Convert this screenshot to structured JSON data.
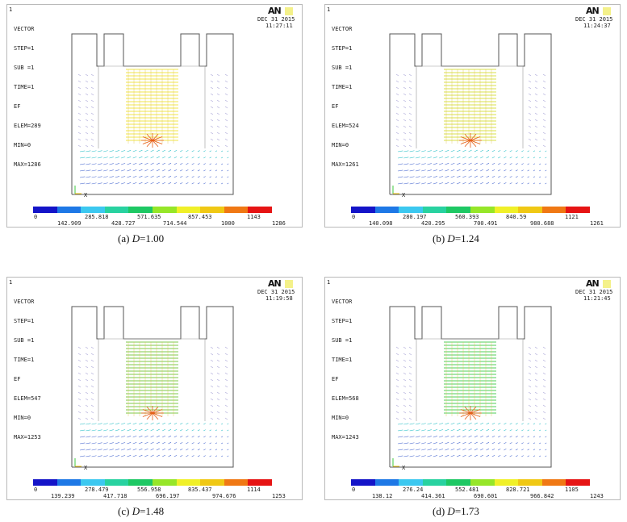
{
  "panels": [
    {
      "frame_no": "1",
      "header": [
        "VECTOR",
        "STEP=1",
        "SUB =1",
        "TIME=1",
        "EF",
        "ELEM=289",
        "MIN=0",
        "MAX=1286"
      ],
      "logo": "AN",
      "date": "DEC 31 2015",
      "time": "11:27:11",
      "legend_top": [
        "0",
        "285.818",
        "571.635",
        "857.453",
        "1143"
      ],
      "legend_bottom": [
        "142.909",
        "428.727",
        "714.544",
        "1000",
        "1286"
      ],
      "caption_label": "(a)",
      "caption_var": "D",
      "caption_value": "=1.00",
      "axis_mark": "X",
      "slot_color": "#f2e64a"
    },
    {
      "frame_no": "1",
      "header": [
        "VECTOR",
        "STEP=1",
        "SUB =1",
        "TIME=1",
        "EF",
        "ELEM=524",
        "MIN=0",
        "MAX=1261"
      ],
      "logo": "AN",
      "date": "DEC 31 2015",
      "time": "11:24:37",
      "legend_top": [
        "0",
        "280.197",
        "560.393",
        "840.59",
        "1121"
      ],
      "legend_bottom": [
        "140.098",
        "420.295",
        "700.491",
        "980.688",
        "1261"
      ],
      "caption_label": "(b)",
      "caption_var": "D",
      "caption_value": "=1.24",
      "axis_mark": "X",
      "slot_color": "#d8e04a"
    },
    {
      "frame_no": "1",
      "header": [
        "VECTOR",
        "STEP=1",
        "SUB =1",
        "TIME=1",
        "EF",
        "ELEM=547",
        "MIN=0",
        "MAX=1253"
      ],
      "logo": "AN",
      "date": "DEC 31 2015",
      "time": "11:19:58",
      "legend_top": [
        "0",
        "278.479",
        "556.958",
        "835.437",
        "1114"
      ],
      "legend_bottom": [
        "139.239",
        "417.718",
        "696.197",
        "974.676",
        "1253"
      ],
      "caption_label": "(c)",
      "caption_var": "D",
      "caption_value": "=1.48",
      "axis_mark": "X",
      "slot_color": "#7cc94a"
    },
    {
      "frame_no": "1",
      "header": [
        "VECTOR",
        "STEP=1",
        "SUB =1",
        "TIME=1",
        "EF",
        "ELEM=568",
        "MIN=0",
        "MAX=1243"
      ],
      "logo": "AN",
      "date": "DEC 31 2015",
      "time": "11:21:45",
      "legend_top": [
        "0",
        "276.24",
        "552.481",
        "828.721",
        "1105"
      ],
      "legend_bottom": [
        "138.12",
        "414.361",
        "690.601",
        "966.842",
        "1243"
      ],
      "caption_label": "(d)",
      "caption_var": "D",
      "caption_value": "=1.73",
      "axis_mark": "X",
      "slot_color": "#4fcf5a"
    }
  ],
  "legend_colors": [
    "#1414c8",
    "#1e78e6",
    "#3cc8f0",
    "#28d2a0",
    "#1ec864",
    "#96e628",
    "#f0f028",
    "#f0c814",
    "#f07814",
    "#e61414"
  ]
}
